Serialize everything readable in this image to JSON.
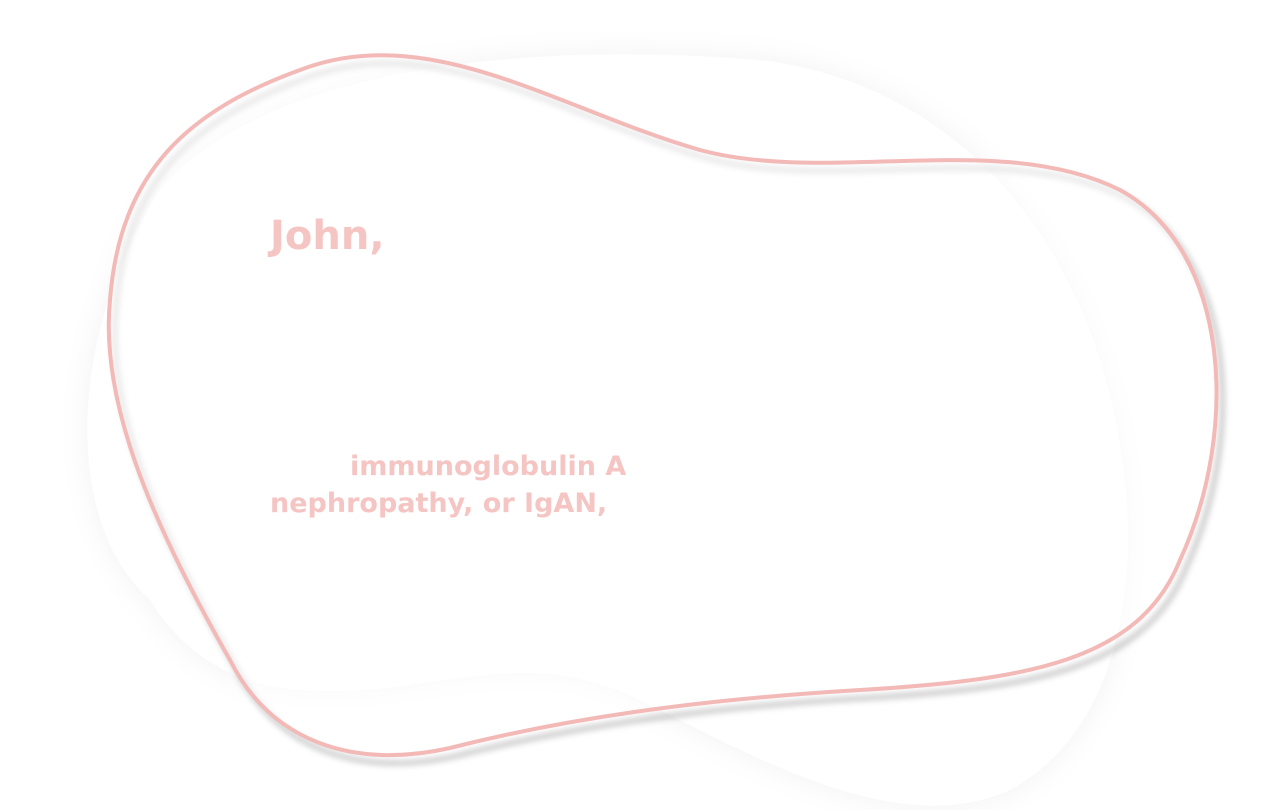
{
  "card": {
    "greeting": "John,",
    "message_line1": "immunoglobulin A",
    "message_line2": "nephropathy, or IgAN,"
  },
  "colors": {
    "background": "#ffffff",
    "accent": "#f4c5c2",
    "outline": "#f2b9b7",
    "shadow": "#d9d9d9"
  }
}
